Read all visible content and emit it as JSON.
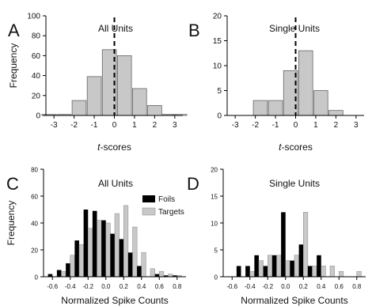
{
  "chart_data": [
    {
      "panel": "A",
      "title": "All Units",
      "type": "bar",
      "xlabel": "t-scores",
      "ylabel": "Frequency",
      "x_ticks": [
        -3,
        -2,
        -1,
        0,
        1,
        2,
        3
      ],
      "y_ticks": [
        0,
        20,
        40,
        60,
        80,
        100
      ],
      "xlim": [
        -3.4,
        3.4
      ],
      "ylim": [
        0,
        100
      ],
      "bar_width": 0.7,
      "x": [
        -3.25,
        -2.5,
        -1.75,
        -1.0,
        -0.25,
        0.5,
        1.25,
        2.0,
        2.75,
        3.25
      ],
      "values": [
        1,
        1,
        15,
        39,
        66,
        60,
        27,
        10,
        1,
        1
      ],
      "reference_line": 0
    },
    {
      "panel": "B",
      "title": "Single Units",
      "type": "bar",
      "xlabel": "t-scores",
      "ylabel": "",
      "x_ticks": [
        -3,
        -2,
        -1,
        0,
        1,
        2,
        3
      ],
      "y_ticks": [
        0,
        5,
        10,
        15,
        20
      ],
      "xlim": [
        -3.4,
        3.4
      ],
      "ylim": [
        0,
        20
      ],
      "bar_width": 0.7,
      "x": [
        -1.75,
        -1.0,
        -0.25,
        0.5,
        1.25,
        2.0
      ],
      "values": [
        3,
        3,
        9,
        13,
        5,
        1
      ],
      "reference_line": 0
    },
    {
      "panel": "C",
      "title": "All Units",
      "type": "bar",
      "xlabel": "Normalized Spike Counts",
      "ylabel": "Frequency",
      "x_ticks": [
        -0.6,
        -0.4,
        -0.2,
        0.0,
        0.2,
        0.4,
        0.6,
        0.8
      ],
      "y_ticks": [
        0,
        20,
        40,
        60,
        80
      ],
      "xlim": [
        -0.7,
        0.9
      ],
      "ylim": [
        0,
        80
      ],
      "bin_width": 0.1,
      "categories": [
        -0.6,
        -0.5,
        -0.4,
        -0.3,
        -0.2,
        -0.1,
        0.0,
        0.1,
        0.2,
        0.3,
        0.4,
        0.5,
        0.6,
        0.7,
        0.8
      ],
      "legend": "top-right",
      "series": [
        {
          "name": "Foils",
          "color": "#000000",
          "values": [
            2,
            5,
            10,
            27,
            50,
            49,
            42,
            32,
            28,
            18,
            8,
            0,
            2,
            1,
            1
          ]
        },
        {
          "name": "Targets",
          "color": "#c8c8c8",
          "values": [
            0,
            4,
            16,
            24,
            36,
            42,
            40,
            47,
            53,
            37,
            18,
            6,
            4,
            2,
            1
          ]
        }
      ]
    },
    {
      "panel": "D",
      "title": "Single Units",
      "type": "bar",
      "xlabel": "Normalized Spike Counts",
      "ylabel": "",
      "x_ticks": [
        -0.6,
        -0.4,
        -0.2,
        0.0,
        0.2,
        0.4,
        0.6,
        0.8
      ],
      "y_ticks": [
        0,
        5,
        10,
        15,
        20
      ],
      "xlim": [
        -0.7,
        0.9
      ],
      "ylim": [
        0,
        20
      ],
      "bin_width": 0.1,
      "categories": [
        -0.6,
        -0.5,
        -0.4,
        -0.3,
        -0.2,
        -0.1,
        0.0,
        0.1,
        0.2,
        0.3,
        0.4,
        0.5,
        0.6,
        0.7,
        0.8
      ],
      "series": [
        {
          "name": "Foils",
          "color": "#000000",
          "values": [
            0,
            2,
            2,
            4,
            2,
            4,
            12,
            3,
            6,
            2,
            4,
            0,
            0,
            0,
            0
          ]
        },
        {
          "name": "Targets",
          "color": "#c8c8c8",
          "values": [
            0,
            0,
            1,
            3,
            4,
            4,
            3,
            4,
            12,
            2,
            2,
            2,
            1,
            0,
            1
          ]
        }
      ]
    }
  ]
}
